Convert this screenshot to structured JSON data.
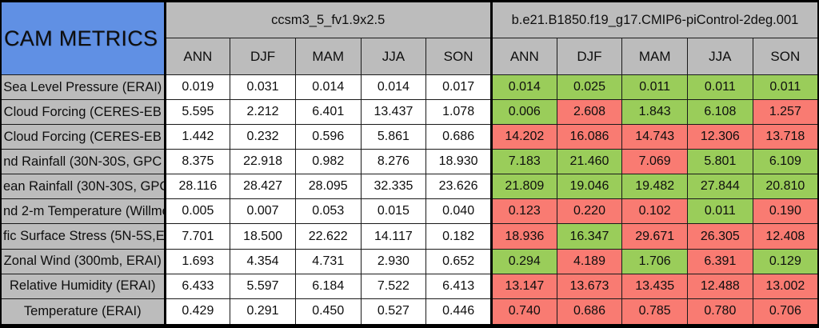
{
  "title": "CAM METRICS",
  "header": {
    "group1": "ccsm3_5_fv1.9x2.5",
    "group2": "b.e21.B1850.f19_g17.CMIP6-piControl-2deg.001",
    "seasons": [
      "ANN",
      "DJF",
      "MAM",
      "JJA",
      "SON"
    ]
  },
  "colors": {
    "title_bg": "#6090e4",
    "header_bg": "#bcbcbc",
    "label_bg": "#bcbcbc",
    "value_bg": "#ffffff",
    "better_green": "#9acd5a",
    "worse_red": "#f97b72",
    "grid": "#1a1a1a",
    "text": "#0e0e0e"
  },
  "chart_data": {
    "type": "table",
    "title": "CAM METRICS",
    "column_groups": [
      {
        "name": "ccsm3_5_fv1.9x2.5",
        "seasons": [
          "ANN",
          "DJF",
          "MAM",
          "JJA",
          "SON"
        ]
      },
      {
        "name": "b.e21.B1850.f19_g17.CMIP6-piControl-2deg.001",
        "seasons": [
          "ANN",
          "DJF",
          "MAM",
          "JJA",
          "SON"
        ]
      }
    ],
    "color_coding": {
      "green": "#9acd5a",
      "red": "#f97b72"
    },
    "rows": [
      {
        "label": "Sea Level Pressure (ERAI)",
        "group1_values": [
          "0.019",
          "0.031",
          "0.014",
          "0.014",
          "0.017"
        ],
        "group2_values": [
          "0.014",
          "0.025",
          "0.011",
          "0.011",
          "0.011"
        ],
        "group2_cell_colors": [
          "green",
          "green",
          "green",
          "green",
          "green"
        ]
      },
      {
        "label": "Cloud Forcing (CERES-EB",
        "group1_values": [
          "5.595",
          "2.212",
          "6.401",
          "13.437",
          "1.078"
        ],
        "group2_values": [
          "0.006",
          "2.608",
          "1.843",
          "6.108",
          "1.257"
        ],
        "group2_cell_colors": [
          "green",
          "red",
          "green",
          "green",
          "red"
        ]
      },
      {
        "label": "Cloud Forcing (CERES-EB",
        "group1_values": [
          "1.442",
          "0.232",
          "0.596",
          "5.861",
          "0.686"
        ],
        "group2_values": [
          "14.202",
          "16.086",
          "14.743",
          "12.306",
          "13.718"
        ],
        "group2_cell_colors": [
          "red",
          "red",
          "red",
          "red",
          "red"
        ]
      },
      {
        "label": "nd Rainfall (30N-30S, GPC",
        "group1_values": [
          "8.375",
          "22.918",
          "0.982",
          "8.276",
          "18.930"
        ],
        "group2_values": [
          "7.183",
          "21.460",
          "7.069",
          "5.801",
          "6.109"
        ],
        "group2_cell_colors": [
          "green",
          "green",
          "red",
          "green",
          "green"
        ]
      },
      {
        "label": "ean Rainfall (30N-30S, GPC",
        "group1_values": [
          "28.116",
          "28.427",
          "28.095",
          "32.335",
          "23.626"
        ],
        "group2_values": [
          "21.809",
          "19.046",
          "19.482",
          "27.844",
          "20.810"
        ],
        "group2_cell_colors": [
          "green",
          "green",
          "green",
          "green",
          "green"
        ]
      },
      {
        "label": "nd 2-m Temperature (Willmo",
        "group1_values": [
          "0.005",
          "0.007",
          "0.053",
          "0.015",
          "0.040"
        ],
        "group2_values": [
          "0.123",
          "0.220",
          "0.102",
          "0.011",
          "0.190"
        ],
        "group2_cell_colors": [
          "red",
          "red",
          "red",
          "green",
          "red"
        ]
      },
      {
        "label": "fic Surface Stress (5N-5S,E",
        "group1_values": [
          "7.701",
          "18.500",
          "22.622",
          "14.117",
          "0.182"
        ],
        "group2_values": [
          "18.936",
          "16.347",
          "29.671",
          "26.305",
          "12.408"
        ],
        "group2_cell_colors": [
          "red",
          "green",
          "red",
          "red",
          "red"
        ]
      },
      {
        "label": "Zonal Wind (300mb, ERAI)",
        "group1_values": [
          "1.693",
          "4.354",
          "4.731",
          "2.930",
          "0.652"
        ],
        "group2_values": [
          "0.294",
          "4.189",
          "1.706",
          "6.391",
          "0.129"
        ],
        "group2_cell_colors": [
          "green",
          "red",
          "green",
          "red",
          "green"
        ]
      },
      {
        "label": "Relative Humidity (ERAI)",
        "group1_values": [
          "6.433",
          "5.597",
          "6.184",
          "7.522",
          "6.413"
        ],
        "group2_values": [
          "13.147",
          "13.673",
          "13.435",
          "12.488",
          "13.002"
        ],
        "group2_cell_colors": [
          "red",
          "red",
          "red",
          "red",
          "red"
        ]
      },
      {
        "label": "Temperature (ERAI)",
        "group1_values": [
          "0.429",
          "0.291",
          "0.450",
          "0.527",
          "0.446"
        ],
        "group2_values": [
          "0.740",
          "0.686",
          "0.785",
          "0.780",
          "0.706"
        ],
        "group2_cell_colors": [
          "red",
          "red",
          "red",
          "red",
          "red"
        ]
      }
    ]
  }
}
